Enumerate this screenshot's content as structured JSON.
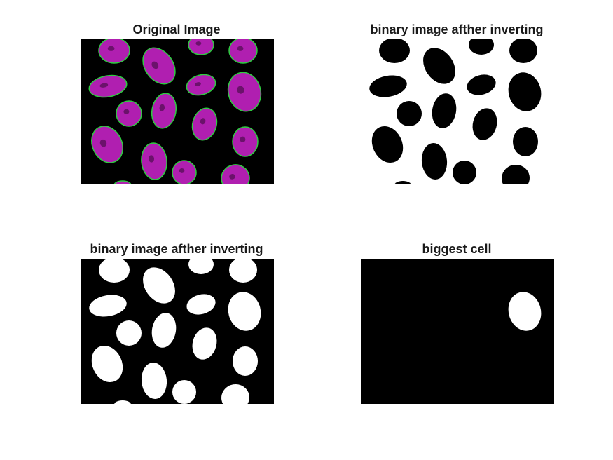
{
  "figure": {
    "background": "#ffffff",
    "panels": [
      {
        "title": "Original Image",
        "kind": "fluorescence",
        "colors": {
          "background": "#000000",
          "nucleus": "#b01fb0",
          "outline": "#2ecc40"
        }
      },
      {
        "title": "binary image afther inverting",
        "kind": "binary-inverted",
        "colors": {
          "background": "#ffffff",
          "nucleus": "#000000"
        }
      },
      {
        "title": "binary image afther inverting",
        "kind": "binary",
        "colors": {
          "background": "#000000",
          "nucleus": "#ffffff"
        }
      },
      {
        "title": "biggest cell",
        "kind": "largest-object",
        "colors": {
          "background": "#000000",
          "nucleus": "#ffffff"
        }
      }
    ]
  }
}
